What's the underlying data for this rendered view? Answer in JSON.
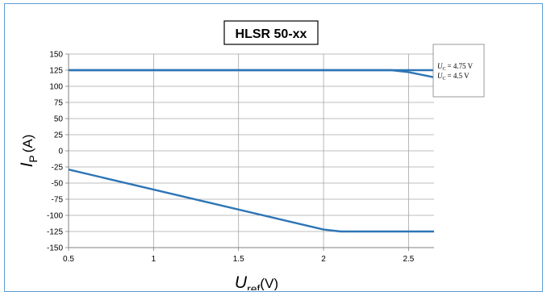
{
  "chart_data": {
    "type": "line",
    "title": "HLSR 50-xx",
    "xlabel": {
      "symbol": "U",
      "subscript": "ref",
      "unit": "(V)"
    },
    "ylabel": {
      "symbol": "I",
      "subscript": "P",
      "unit": "(A)"
    },
    "xlim": [
      0.5,
      2.65
    ],
    "ylim": [
      -150,
      150
    ],
    "xticks": [
      0.5,
      1,
      1.5,
      2,
      2.5
    ],
    "xtick_labels": [
      "0.5",
      "1",
      "1.5",
      "2",
      "2.5"
    ],
    "yticks": [
      150,
      125,
      100,
      75,
      50,
      25,
      0,
      -25,
      -50,
      -75,
      -100,
      -125,
      -150
    ],
    "ytick_labels": [
      "150",
      "125",
      "100",
      "75",
      "50",
      "25",
      "0",
      "-25",
      "-50",
      "-75",
      "-100",
      "-125",
      "-150"
    ],
    "grid": true,
    "line_color": "#2e75b6",
    "legend_position": "right",
    "series": [
      {
        "name": "U_C = 4.75 V",
        "legend_symbol": "U",
        "legend_subscript": "C",
        "legend_value": "= 4.75 V",
        "points": [
          [
            0.5,
            125
          ],
          [
            2.65,
            125
          ]
        ]
      },
      {
        "name": "U_C = 4.5 V",
        "legend_symbol": "U",
        "legend_subscript": "C",
        "legend_value": "= 4.5 V",
        "points": [
          [
            0.5,
            125
          ],
          [
            2.4,
            125
          ],
          [
            2.5,
            122
          ],
          [
            2.65,
            114
          ]
        ]
      },
      {
        "name": "",
        "points": [
          [
            0.5,
            -29
          ],
          [
            2.0,
            -122
          ],
          [
            2.1,
            -125
          ],
          [
            2.65,
            -125
          ]
        ]
      }
    ]
  }
}
